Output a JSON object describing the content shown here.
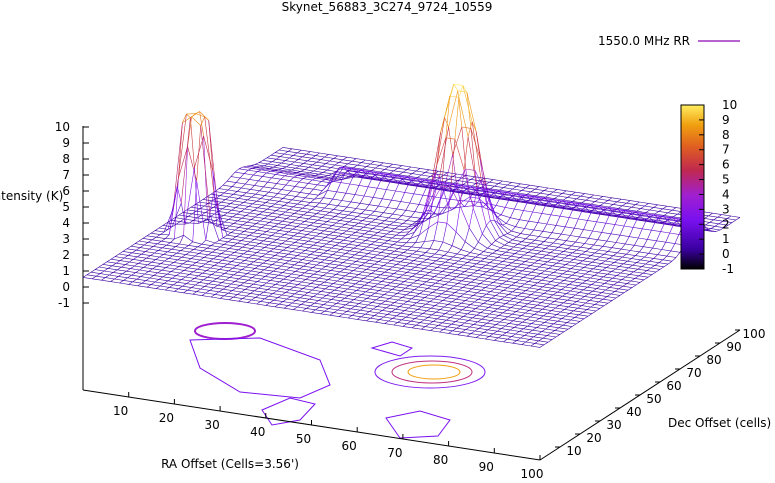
{
  "chart_data": {
    "type": "surface3d",
    "title": "Skynet_56883_3C274_9724_10559",
    "zlabel": "Intensity (K)",
    "xlabel": "RA Offset (Cells=3.56')",
    "ylabel": "Dec Offset (cells)",
    "legend": {
      "label": "1550.0 MHz RR",
      "position": "top-right"
    },
    "xlim": [
      0,
      100
    ],
    "ylim": [
      0,
      100
    ],
    "zlim": [
      -1,
      10
    ],
    "x_ticks": [
      "10",
      "20",
      "30",
      "40",
      "50",
      "60",
      "70",
      "80",
      "90",
      "100"
    ],
    "y_ticks": [
      "10",
      "20",
      "30",
      "40",
      "50",
      "60",
      "70",
      "80",
      "90",
      "100"
    ],
    "z_ticks": [
      "-1",
      "0",
      "1",
      "2",
      "3",
      "4",
      "5",
      "6",
      "7",
      "8",
      "9",
      "10"
    ],
    "colorbar": {
      "range": [
        -1,
        10
      ],
      "ticks": [
        "-1",
        "0",
        "1",
        "2",
        "3",
        "4",
        "5",
        "6",
        "7",
        "8",
        "9",
        "10"
      ]
    },
    "palette": [
      "#000000",
      "#3a00a0",
      "#7a10f0",
      "#a020d0",
      "#c02850",
      "#e06020",
      "#f0a010",
      "#ffee60"
    ],
    "features": [
      {
        "name": "main-peak",
        "x": 55,
        "y": 62,
        "peak": 10
      },
      {
        "name": "secondary-peak",
        "x": 8,
        "y": 38,
        "peak": 7.5
      },
      {
        "name": "ridge",
        "x": 48,
        "y": 78,
        "peak": 1.5
      }
    ]
  }
}
